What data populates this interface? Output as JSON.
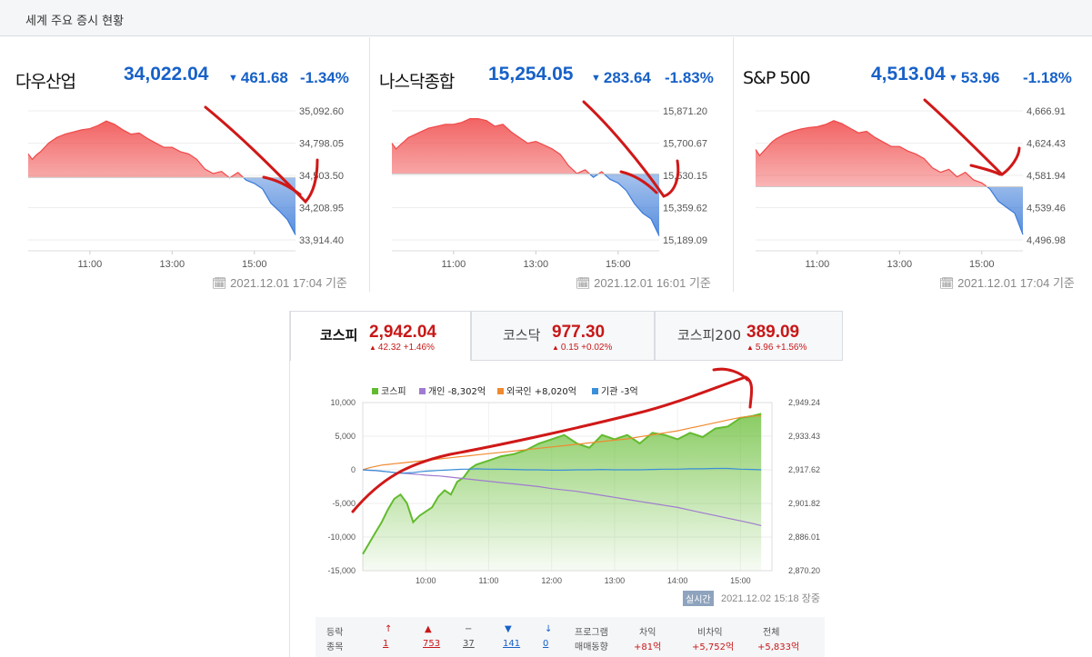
{
  "header": {
    "title": "세계 주요 증시 현황"
  },
  "chart_data": [
    {
      "type": "area",
      "name": "다우산업",
      "price": "34,022.04",
      "change": "461.68",
      "change_pct": "-1.34%",
      "direction": "down",
      "timestamp": "2021.12.01 17:04 기준",
      "ylim": [
        33914.4,
        35092.6
      ],
      "y_ticks": [
        "35,092.60",
        "34,798.05",
        "34,503.50",
        "34,208.95",
        "33,914.40"
      ],
      "x_ticks": [
        "11:00",
        "13:00",
        "15:00"
      ],
      "baseline": 34483.72,
      "x_hours": [
        9.5,
        9.6,
        9.7,
        9.8,
        9.9,
        10.0,
        10.2,
        10.4,
        10.6,
        10.8,
        11.0,
        11.2,
        11.4,
        11.6,
        11.8,
        12.0,
        12.2,
        12.4,
        12.6,
        12.8,
        13.0,
        13.2,
        13.4,
        13.6,
        13.8,
        14.0,
        14.2,
        14.4,
        14.6,
        14.8,
        15.0,
        15.2,
        15.4,
        15.6,
        15.8,
        16.0
      ],
      "values": [
        34700,
        34650,
        34690,
        34720,
        34760,
        34800,
        34850,
        34880,
        34900,
        34920,
        34930,
        34960,
        35000,
        34970,
        34920,
        34880,
        34890,
        34840,
        34800,
        34760,
        34760,
        34720,
        34700,
        34650,
        34560,
        34520,
        34540,
        34480,
        34530,
        34460,
        34430,
        34380,
        34250,
        34180,
        34100,
        33960
      ]
    },
    {
      "type": "area",
      "name": "나스닥종합",
      "price": "15,254.05",
      "change": "283.64",
      "change_pct": "-1.83%",
      "direction": "down",
      "timestamp": "2021.12.01 16:01 기준",
      "ylim": [
        15189.09,
        15871.2
      ],
      "y_ticks": [
        "15,871.20",
        "15,700.67",
        "15,530.15",
        "15,359.62",
        "15,189.09"
      ],
      "x_ticks": [
        "11:00",
        "13:00",
        "15:00"
      ],
      "baseline": 15537.69,
      "x_hours": [
        9.5,
        9.6,
        9.7,
        9.8,
        9.9,
        10.0,
        10.2,
        10.4,
        10.6,
        10.8,
        11.0,
        11.2,
        11.4,
        11.6,
        11.8,
        12.0,
        12.2,
        12.4,
        12.6,
        12.8,
        13.0,
        13.2,
        13.4,
        13.6,
        13.8,
        14.0,
        14.2,
        14.4,
        14.6,
        14.8,
        15.0,
        15.2,
        15.4,
        15.6,
        15.8,
        16.0
      ],
      "values": [
        15700,
        15670,
        15690,
        15710,
        15730,
        15740,
        15760,
        15780,
        15790,
        15800,
        15800,
        15810,
        15830,
        15830,
        15820,
        15790,
        15800,
        15760,
        15730,
        15700,
        15710,
        15690,
        15670,
        15640,
        15580,
        15540,
        15560,
        15520,
        15550,
        15510,
        15490,
        15450,
        15380,
        15330,
        15300,
        15210
      ]
    },
    {
      "type": "area",
      "name": "S&P 500",
      "price": "4,513.04",
      "change": "53.96",
      "change_pct": "-1.18%",
      "direction": "down",
      "timestamp": "2021.12.01 17:04 기준",
      "ylim": [
        4496.98,
        4666.91
      ],
      "y_ticks": [
        "4,666.91",
        "4,624.43",
        "4,581.94",
        "4,539.46",
        "4,496.98"
      ],
      "x_ticks": [
        "11:00",
        "13:00",
        "15:00"
      ],
      "baseline": 4567.0,
      "x_hours": [
        9.5,
        9.6,
        9.7,
        9.8,
        9.9,
        10.0,
        10.2,
        10.4,
        10.6,
        10.8,
        11.0,
        11.2,
        11.4,
        11.6,
        11.8,
        12.0,
        12.2,
        12.4,
        12.6,
        12.8,
        13.0,
        13.2,
        13.4,
        13.6,
        13.8,
        14.0,
        14.2,
        14.4,
        14.6,
        14.8,
        15.0,
        15.2,
        15.4,
        15.6,
        15.8,
        16.0
      ],
      "values": [
        4616,
        4608,
        4614,
        4620,
        4626,
        4630,
        4636,
        4640,
        4643,
        4645,
        4646,
        4649,
        4654,
        4650,
        4644,
        4638,
        4640,
        4632,
        4626,
        4620,
        4620,
        4614,
        4610,
        4604,
        4592,
        4586,
        4590,
        4580,
        4586,
        4576,
        4572,
        4564,
        4548,
        4540,
        4532,
        4504
      ]
    },
    {
      "type": "line",
      "name": "코스피 투자자별 매매동향",
      "left_ylim": [
        -15000,
        10000
      ],
      "left_ticks": [
        "10,000",
        "5,000",
        "0",
        "-5,000",
        "-10,000",
        "-15,000"
      ],
      "right_ylim": [
        2870.2,
        2949.24
      ],
      "right_ticks": [
        "2,949.24",
        "2,933.43",
        "2,917.62",
        "2,901.82",
        "2,886.01",
        "2,870.20"
      ],
      "x_ticks": [
        "10:00",
        "11:00",
        "12:00",
        "13:00",
        "14:00",
        "15:00"
      ],
      "x_hours": [
        9.0,
        9.1,
        9.2,
        9.3,
        9.4,
        9.5,
        9.6,
        9.7,
        9.8,
        9.9,
        10.0,
        10.1,
        10.2,
        10.3,
        10.4,
        10.5,
        10.6,
        10.7,
        10.8,
        11.0,
        11.2,
        11.4,
        11.6,
        11.8,
        12.0,
        12.2,
        12.4,
        12.6,
        12.8,
        13.0,
        13.2,
        13.4,
        13.6,
        13.8,
        14.0,
        14.2,
        14.4,
        14.6,
        14.8,
        15.0,
        15.2,
        15.33
      ],
      "series": [
        {
          "name": "코스피",
          "axis": "right",
          "color": "#62bb2e",
          "values": [
            2878,
            2883,
            2888,
            2893,
            2899,
            2904,
            2906,
            2902,
            2893,
            2896,
            2898,
            2900,
            2905,
            2908,
            2906,
            2912,
            2914,
            2918,
            2920,
            2922,
            2924,
            2925,
            2927,
            2930,
            2932,
            2934,
            2930,
            2928,
            2934,
            2932,
            2934,
            2930,
            2935,
            2934,
            2932,
            2935,
            2933,
            2937,
            2938,
            2942,
            2943,
            2944
          ]
        },
        {
          "name": "개인",
          "label": "개인 -8,302억",
          "axis": "left",
          "color": "#a07bd0",
          "values": [
            0,
            -80,
            -120,
            -200,
            -300,
            -400,
            -500,
            -560,
            -620,
            -700,
            -800,
            -860,
            -900,
            -1000,
            -1100,
            -1200,
            -1300,
            -1400,
            -1500,
            -1700,
            -1900,
            -2100,
            -2300,
            -2500,
            -2800,
            -3000,
            -3200,
            -3500,
            -3800,
            -4100,
            -4400,
            -4700,
            -5000,
            -5300,
            -5600,
            -6000,
            -6400,
            -6800,
            -7200,
            -7600,
            -8000,
            -8302
          ]
        },
        {
          "name": "외국인",
          "label": "외국인 +8,020억",
          "axis": "left",
          "color": "#f08a30",
          "values": [
            0,
            300,
            500,
            700,
            800,
            900,
            1000,
            1100,
            1200,
            1300,
            1400,
            1500,
            1600,
            1700,
            1800,
            1900,
            2000,
            2100,
            2200,
            2400,
            2600,
            2800,
            3000,
            3200,
            3400,
            3600,
            3800,
            4000,
            4200,
            4400,
            4600,
            4900,
            5200,
            5500,
            5800,
            6200,
            6600,
            7000,
            7400,
            7800,
            8000,
            8020
          ]
        },
        {
          "name": "기관",
          "label": "기관 -3억",
          "axis": "left",
          "color": "#3a8fd8",
          "values": [
            0,
            -50,
            -100,
            -200,
            -300,
            -400,
            -500,
            -450,
            -400,
            -300,
            -200,
            -150,
            -100,
            -50,
            0,
            50,
            100,
            100,
            150,
            100,
            100,
            50,
            0,
            0,
            -50,
            -50,
            0,
            0,
            50,
            0,
            0,
            0,
            50,
            100,
            100,
            150,
            150,
            200,
            200,
            100,
            50,
            -3
          ]
        }
      ]
    }
  ],
  "korea_tabs": [
    {
      "name": "코스피",
      "value": "2,942.04",
      "change": "42.32",
      "change_pct": "+1.46%"
    },
    {
      "name": "코스닥",
      "value": "977.30",
      "change": "0.15",
      "change_pct": "+0.02%"
    },
    {
      "name": "코스피200",
      "value": "389.09",
      "change": "5.96",
      "change_pct": "+1.56%"
    }
  ],
  "korea_status": {
    "badge": "실시간",
    "timestamp": "2021.12.02 15:18 장중"
  },
  "breadth": {
    "row_label_1": "등락",
    "row_label_2": "종목",
    "items": [
      {
        "icon": "↑",
        "value": "1",
        "color": "#c81818"
      },
      {
        "icon": "▲",
        "value": "753",
        "color": "#c81818"
      },
      {
        "icon": "−",
        "value": "37",
        "color": "#555555"
      },
      {
        "icon": "▼",
        "value": "141",
        "color": "#1761c8"
      },
      {
        "icon": "↓",
        "value": "0",
        "color": "#1761c8"
      }
    ],
    "program_label_1": "프로그램",
    "program_label_2": "매매동향",
    "program": [
      {
        "label": "차익",
        "value": "+81억"
      },
      {
        "label": "비차익",
        "value": "+5,752억"
      },
      {
        "label": "전체",
        "value": "+5,833억"
      }
    ]
  },
  "colors": {
    "up": "#c81818",
    "down": "#1761c8",
    "area_up": "#f04848",
    "area_down": "#3a7ad8",
    "annotation": "#d01818"
  }
}
